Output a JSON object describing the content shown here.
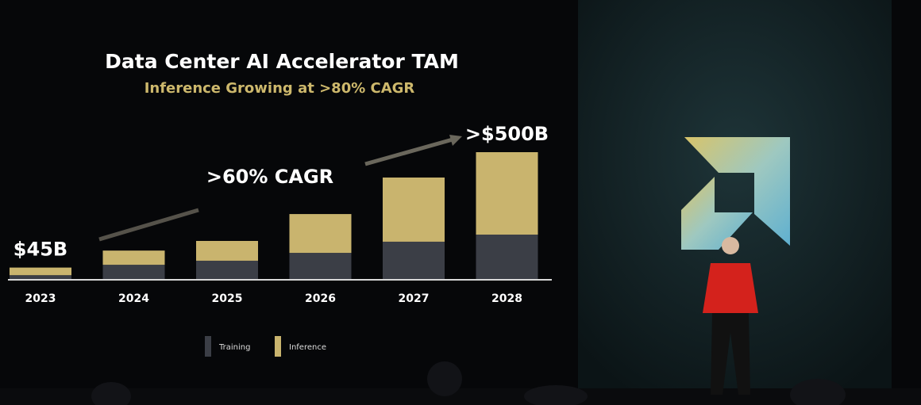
{
  "chart_data": {
    "type": "stacked_bar",
    "title": "Data Center AI Accelerator TAM",
    "subtitle": "Inference Growing at >80% CAGR",
    "categories": [
      "2023",
      "2024",
      "2025",
      "2026",
      "2027",
      "2028"
    ],
    "series": [
      {
        "name": "Training",
        "color": "#3b3e46",
        "values": [
          15,
          56,
          72,
          103,
          147,
          175
        ]
      },
      {
        "name": "Inference",
        "color": "#c9b46e",
        "values": [
          30,
          56,
          78,
          153,
          253,
          325
        ]
      }
    ],
    "annotations": [
      {
        "text": "$45B",
        "category": 0
      },
      {
        "text": ">60% CAGR"
      },
      {
        "text": ">$500B",
        "category": 5
      }
    ]
  }
}
